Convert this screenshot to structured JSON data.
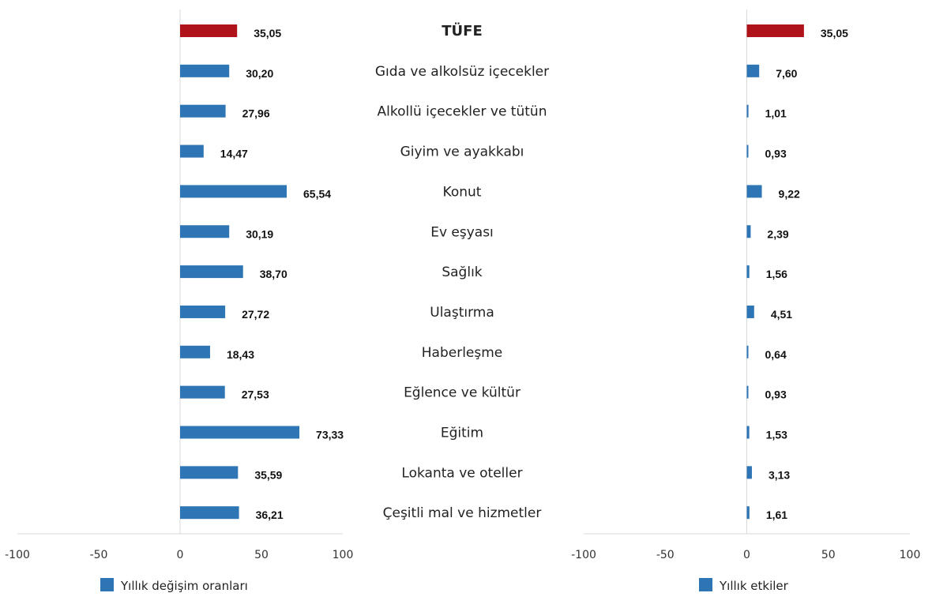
{
  "chart_data": {
    "type": "bar",
    "orientation": "horizontal",
    "categories": [
      "TÜFE",
      "Gıda ve alkolsüz içecekler",
      "Alkollü içecekler ve tütün",
      "Giyim ve ayakkabı",
      "Konut",
      "Ev eşyası",
      "Sağlık",
      "Ulaştırma",
      "Haberleşme",
      "Eğlence ve kültür",
      "Eğitim",
      "Lokanta ve oteller",
      "Çeşitli mal ve hizmetler"
    ],
    "highlight_category": "TÜFE",
    "colors": {
      "series": "#2E75B6",
      "highlight": "#B0121A",
      "axis": "#d9d9d9"
    },
    "panels": [
      {
        "series_name": "Yıllık değişim oranları",
        "values": [
          35.05,
          30.2,
          27.96,
          14.47,
          65.54,
          30.19,
          38.7,
          27.72,
          18.43,
          27.53,
          73.33,
          35.59,
          36.21
        ],
        "value_labels": [
          "35,05",
          "30,20",
          "27,96",
          "14,47",
          "65,54",
          "30,19",
          "38,70",
          "27,72",
          "18,43",
          "27,53",
          "73,33",
          "35,59",
          "36,21"
        ],
        "xlim": [
          -100,
          100
        ],
        "ticks": [
          -100,
          -50,
          0,
          50,
          100
        ]
      },
      {
        "series_name": "Yıllık etkiler",
        "values": [
          35.05,
          7.6,
          1.01,
          0.93,
          9.22,
          2.39,
          1.56,
          4.51,
          0.64,
          0.93,
          1.53,
          3.13,
          1.61
        ],
        "value_labels": [
          "35,05",
          "7,60",
          "1,01",
          "0,93",
          "9,22",
          "2,39",
          "1,56",
          "4,51",
          "0,64",
          "0,93",
          "1,53",
          "3,13",
          "1,61"
        ],
        "xlim": [
          -100,
          100
        ],
        "ticks": [
          -100,
          -50,
          0,
          50,
          100
        ]
      }
    ],
    "grid": false,
    "legend_position": "bottom"
  }
}
